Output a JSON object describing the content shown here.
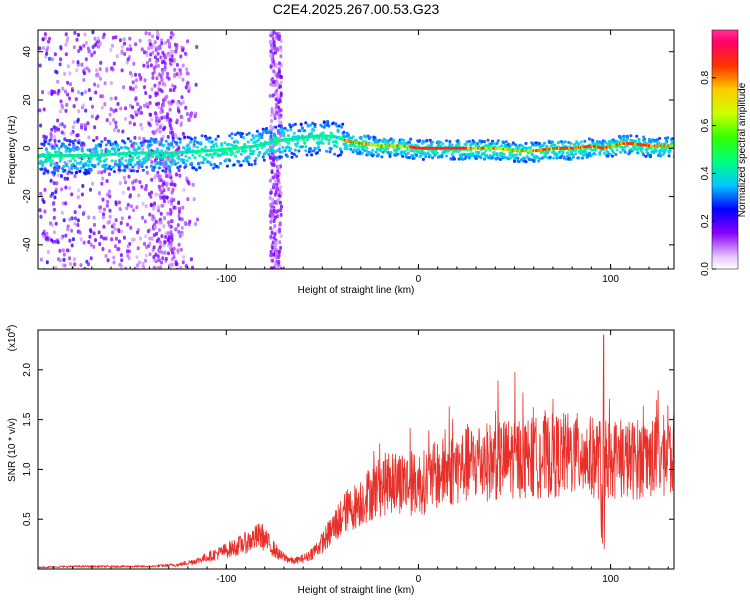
{
  "title": "C2E4.2025.267.00.53.G23",
  "chart_data": [
    {
      "type": "heatmap",
      "name": "spectrogram",
      "xlabel": "Height of straight line (km)",
      "ylabel": "Frequency (Hz)",
      "xlim": [
        -198,
        133
      ],
      "ylim": [
        -50,
        49
      ],
      "xticks": [
        -100,
        0,
        100
      ],
      "yticks": [
        -40,
        -20,
        0,
        20,
        40
      ],
      "grid": false,
      "ridge": {
        "x": [
          -190,
          -170,
          -150,
          -130,
          -110,
          -95,
          -85,
          -75,
          -65,
          -55,
          -45,
          -38,
          -30,
          -20,
          -10,
          0,
          10,
          20,
          30,
          40,
          50,
          60,
          70,
          80,
          90,
          95,
          100,
          105,
          110,
          120,
          133
        ],
        "freq": [
          -3,
          -3,
          -2,
          -2,
          -1,
          0,
          1,
          3,
          4,
          5,
          5,
          3,
          2,
          1,
          1,
          0,
          0,
          0,
          0,
          0,
          -1,
          -1,
          0,
          0,
          1,
          0,
          1,
          2,
          2,
          1,
          1
        ]
      },
      "colorbar": {
        "label": "Normalized spectral amplitude",
        "range": [
          0,
          1
        ],
        "ticks": [
          0.0,
          0.2,
          0.4,
          0.6,
          0.8
        ]
      }
    },
    {
      "type": "line",
      "name": "snr",
      "xlabel": "Height of straight line (km)",
      "ylabel": "SNR (10 * v/v)",
      "y_multiplier_label": "(x10",
      "y_multiplier_exp": "4",
      "y_multiplier_close": ")",
      "xlim": [
        -198,
        133
      ],
      "ylim": [
        0,
        2.4
      ],
      "xticks": [
        -100,
        0,
        100
      ],
      "yticks": [
        0.5,
        1.0,
        1.5,
        2.0
      ],
      "grid": false,
      "series": [
        {
          "name": "SNR",
          "color": "#e8302a",
          "x": [
            -198,
            -180,
            -160,
            -140,
            -125,
            -115,
            -105,
            -95,
            -88,
            -82,
            -78,
            -72,
            -65,
            -58,
            -52,
            -47,
            -42,
            -38,
            -33,
            -28,
            -22,
            -15,
            -8,
            -3,
            3,
            10,
            20,
            30,
            40,
            50,
            60,
            70,
            80,
            85,
            90,
            95,
            96,
            100,
            110,
            120,
            133
          ],
          "envelope": [
            0.02,
            0.03,
            0.03,
            0.03,
            0.05,
            0.1,
            0.18,
            0.26,
            0.33,
            0.4,
            0.3,
            0.16,
            0.09,
            0.14,
            0.26,
            0.4,
            0.56,
            0.66,
            0.72,
            0.82,
            0.92,
            1.0,
            1.0,
            0.97,
            1.0,
            1.08,
            1.16,
            1.22,
            1.24,
            1.28,
            1.27,
            1.3,
            1.32,
            1.3,
            1.28,
            1.26,
            1.26,
            1.27,
            1.25,
            1.28,
            1.3
          ],
          "spike": {
            "x": 96.5,
            "y": 2.35
          }
        }
      ]
    }
  ],
  "colors": {
    "line": "#e8302a",
    "axis": "#000000"
  }
}
